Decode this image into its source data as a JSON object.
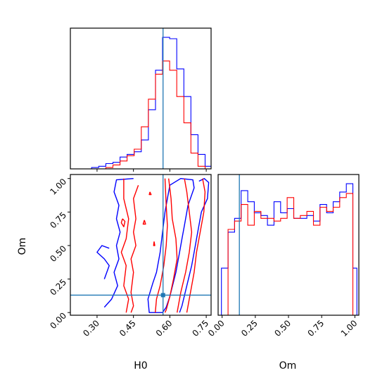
{
  "chart_data": {
    "type": "corner",
    "parameters": [
      "H0",
      "Om"
    ],
    "truth": {
      "H0": 0.572,
      "Om": 0.13
    },
    "truth_color": "#1f77b4",
    "series_colors": [
      "#0000ff",
      "#ff0000"
    ],
    "panels": [
      {
        "id": "hist-H0",
        "type": "histogram",
        "parameter": "H0",
        "xlim": [
          0.19,
          0.77
        ],
        "bin_edges": [
          0.19,
          0.2192,
          0.2485,
          0.2777,
          0.3069,
          0.3362,
          0.3654,
          0.3946,
          0.4238,
          0.4531,
          0.4823,
          0.5115,
          0.5408,
          0.57,
          0.5992,
          0.6285,
          0.6577,
          0.6869,
          0.7162,
          0.7454,
          0.7746
        ],
        "series": [
          {
            "color": "#0000ff",
            "counts": [
              0,
              0,
              0,
              1,
              2,
              4,
              5,
              9,
              11,
              13,
              22,
              45,
              75,
              100,
              99,
              76,
              55,
              26,
              11,
              2
            ]
          },
          {
            "color": "#ff0000",
            "counts": [
              0,
              0,
              0,
              0,
              0,
              1,
              3,
              6,
              10,
              15,
              32,
              53,
              72,
              82,
              75,
              55,
              35,
              12,
              2,
              0
            ]
          }
        ],
        "ticks": [
          0.3,
          0.45,
          0.6,
          0.75
        ]
      },
      {
        "id": "hist-Om",
        "type": "histogram",
        "parameter": "Om",
        "xlim": [
          -0.03,
          1.03
        ],
        "bin_edges": [
          -0.005,
          0.0445,
          0.094,
          0.1435,
          0.193,
          0.2425,
          0.292,
          0.3415,
          0.391,
          0.4405,
          0.49,
          0.5395,
          0.589,
          0.6385,
          0.688,
          0.7375,
          0.787,
          0.8365,
          0.886,
          0.9355,
          0.985,
          1.015
        ],
        "series": [
          {
            "color": "#0000ff",
            "counts": [
              34,
              60,
              70,
              90,
              82,
              74,
              72,
              65,
              82,
              74,
              77,
              70,
              70,
              72,
              68,
              80,
              74,
              82,
              89,
              95,
              34
            ]
          },
          {
            "color": "#ff0000",
            "counts": [
              0,
              62,
              68,
              80,
              65,
              75,
              70,
              70,
              68,
              70,
              85,
              70,
              72,
              75,
              65,
              78,
              75,
              78,
              85,
              88,
              0
            ]
          }
        ],
        "ticks": [
          0.0,
          0.25,
          0.5,
          0.75,
          1.0
        ]
      },
      {
        "id": "contour-H0-Om",
        "type": "contour",
        "x_param": "H0",
        "y_param": "Om",
        "xlim": [
          0.19,
          0.77
        ],
        "ylim": [
          -0.02,
          1.03
        ],
        "contours": [
          {
            "color": "#0000ff",
            "points": [
              [
                0.6,
                0.95
              ],
              [
                0.645,
                1.0
              ],
              [
                0.695,
                0.99
              ],
              [
                0.7,
                0.93
              ],
              [
                0.675,
                0.8
              ],
              [
                0.66,
                0.65
              ],
              [
                0.65,
                0.55
              ],
              [
                0.64,
                0.45
              ],
              [
                0.625,
                0.3
              ],
              [
                0.6,
                0.12
              ],
              [
                0.585,
                0.04
              ],
              [
                0.57,
                0.0
              ],
              [
                0.515,
                0.0
              ],
              [
                0.51,
                0.1
              ],
              [
                0.53,
                0.22
              ],
              [
                0.545,
                0.3
              ],
              [
                0.56,
                0.45
              ],
              [
                0.57,
                0.6
              ],
              [
                0.58,
                0.75
              ],
              [
                0.59,
                0.85
              ],
              [
                0.6,
                0.95
              ]
            ]
          },
          {
            "color": "#0000ff",
            "points": [
              [
                0.45,
                1.0
              ],
              [
                0.38,
                0.99
              ],
              [
                0.37,
                0.9
              ],
              [
                0.39,
                0.8
              ],
              [
                0.38,
                0.7
              ],
              [
                0.395,
                0.6
              ],
              [
                0.38,
                0.5
              ],
              [
                0.39,
                0.4
              ],
              [
                0.37,
                0.3
              ],
              [
                0.385,
                0.2
              ],
              [
                0.36,
                0.1
              ],
              [
                0.33,
                0.04
              ]
            ]
          },
          {
            "color": "#0000ff",
            "points": [
              [
                0.35,
                0.48
              ],
              [
                0.32,
                0.5
              ],
              [
                0.3,
                0.45
              ],
              [
                0.33,
                0.4
              ],
              [
                0.35,
                0.35
              ],
              [
                0.33,
                0.25
              ]
            ]
          },
          {
            "color": "#0000ff",
            "points": [
              [
                0.72,
                0.98
              ],
              [
                0.742,
                1.0
              ],
              [
                0.76,
                0.97
              ],
              [
                0.755,
                0.85
              ],
              [
                0.73,
                0.75
              ],
              [
                0.715,
                0.6
              ],
              [
                0.7,
                0.45
              ],
              [
                0.69,
                0.35
              ],
              [
                0.67,
                0.2
              ],
              [
                0.65,
                0.05
              ],
              [
                0.64,
                0.0
              ]
            ]
          },
          {
            "color": "#ff0000",
            "points": [
              [
                0.41,
                1.0
              ],
              [
                0.41,
                0.85
              ],
              [
                0.43,
                0.7
              ],
              [
                0.42,
                0.55
              ],
              [
                0.4,
                0.45
              ],
              [
                0.42,
                0.35
              ],
              [
                0.41,
                0.2
              ],
              [
                0.43,
                0.1
              ],
              [
                0.42,
                0.0
              ]
            ]
          },
          {
            "color": "#ff0000",
            "points": [
              [
                0.47,
                0.95
              ],
              [
                0.45,
                0.85
              ],
              [
                0.46,
                0.7
              ],
              [
                0.45,
                0.6
              ],
              [
                0.46,
                0.5
              ],
              [
                0.44,
                0.4
              ],
              [
                0.45,
                0.3
              ],
              [
                0.44,
                0.15
              ],
              [
                0.45,
                0.05
              ],
              [
                0.44,
                0.0
              ]
            ]
          },
          {
            "color": "#ff0000",
            "points": [
              [
                0.595,
                1.0
              ],
              [
                0.605,
                0.85
              ],
              [
                0.61,
                0.7
              ],
              [
                0.625,
                0.55
              ],
              [
                0.63,
                0.4
              ],
              [
                0.615,
                0.25
              ],
              [
                0.6,
                0.12
              ],
              [
                0.585,
                0.02
              ],
              [
                0.58,
                0.0
              ]
            ]
          },
          {
            "color": "#ff0000",
            "points": [
              [
                0.54,
                0.0
              ],
              [
                0.545,
                0.1
              ],
              [
                0.56,
                0.2
              ],
              [
                0.575,
                0.35
              ],
              [
                0.585,
                0.5
              ],
              [
                0.59,
                0.65
              ],
              [
                0.585,
                0.8
              ],
              [
                0.58,
                1.0
              ]
            ]
          },
          {
            "color": "#ff0000",
            "points": [
              [
                0.66,
                1.0
              ],
              [
                0.67,
                0.9
              ],
              [
                0.68,
                0.75
              ],
              [
                0.69,
                0.6
              ],
              [
                0.68,
                0.45
              ],
              [
                0.665,
                0.3
              ],
              [
                0.645,
                0.15
              ],
              [
                0.63,
                0.0
              ]
            ]
          },
          {
            "color": "#ff0000",
            "points": [
              [
                0.735,
                1.0
              ],
              [
                0.745,
                0.9
              ],
              [
                0.74,
                0.75
              ],
              [
                0.725,
                0.6
              ],
              [
                0.71,
                0.45
              ],
              [
                0.7,
                0.3
              ],
              [
                0.685,
                0.15
              ],
              [
                0.67,
                0.0
              ]
            ]
          },
          {
            "color": "#ff0000",
            "points": [
              [
                0.405,
                0.7
              ],
              [
                0.4,
                0.67
              ],
              [
                0.41,
                0.64
              ],
              [
                0.415,
                0.68
              ],
              [
                0.405,
                0.7
              ]
            ]
          },
          {
            "color": "#ff0000",
            "points": [
              [
                0.495,
                0.69
              ],
              [
                0.49,
                0.66
              ],
              [
                0.5,
                0.66
              ],
              [
                0.495,
                0.69
              ]
            ]
          },
          {
            "color": "#ff0000",
            "points": [
              [
                0.518,
                0.9
              ],
              [
                0.515,
                0.88
              ],
              [
                0.523,
                0.88
              ],
              [
                0.518,
                0.9
              ]
            ]
          },
          {
            "color": "#ff0000",
            "points": [
              [
                0.535,
                0.53
              ],
              [
                0.533,
                0.5
              ],
              [
                0.538,
                0.5
              ],
              [
                0.535,
                0.53
              ]
            ]
          }
        ],
        "xticks": [
          0.3,
          0.45,
          0.6,
          0.75
        ],
        "yticks": [
          0.0,
          0.25,
          0.5,
          0.75,
          1.0
        ]
      }
    ],
    "labels": {
      "contour_x": "H0",
      "contour_y": "Om",
      "om_hist_x": "Om"
    }
  }
}
